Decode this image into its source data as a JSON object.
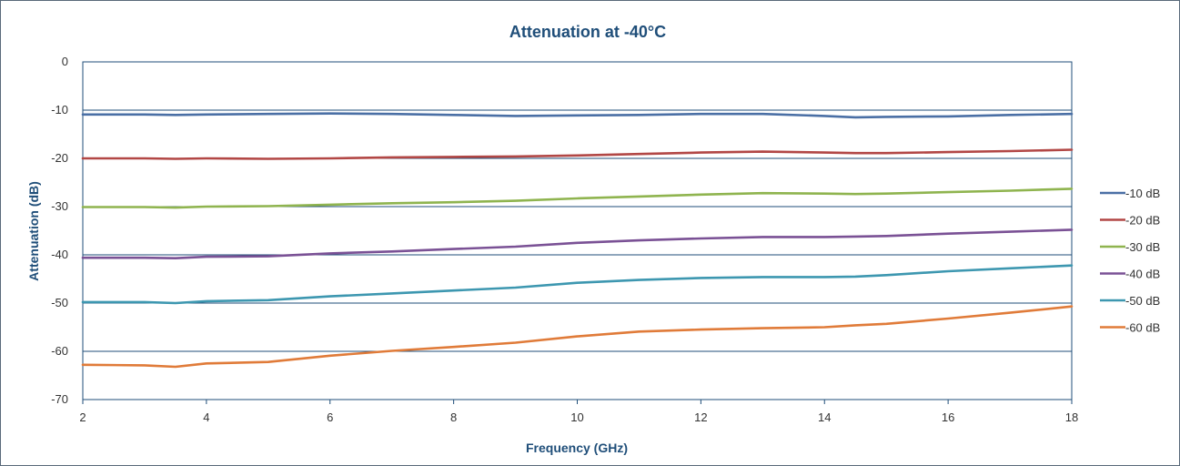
{
  "chart_data": {
    "type": "line",
    "title": "Attenuation at -40°C",
    "xlabel": "Frequency (GHz)",
    "ylabel": "Attenuation (dB)",
    "xlim": [
      2,
      18
    ],
    "ylim": [
      -70,
      0
    ],
    "x_ticks": [
      2,
      4,
      6,
      8,
      10,
      12,
      14,
      16,
      18
    ],
    "y_ticks": [
      0,
      -10,
      -20,
      -30,
      -40,
      -50,
      -60,
      -70
    ],
    "grid": "horizontal",
    "legend_position": "right",
    "x": [
      2,
      3,
      3.5,
      4,
      5,
      6,
      7,
      8,
      9,
      10,
      11,
      12,
      13,
      14,
      14.5,
      15,
      16,
      17,
      18
    ],
    "series": [
      {
        "name": "-10 dB",
        "color": "#4a6fa5",
        "values": [
          -10.9,
          -10.9,
          -11.0,
          -10.9,
          -10.8,
          -10.7,
          -10.8,
          -11.0,
          -11.2,
          -11.1,
          -11.0,
          -10.8,
          -10.8,
          -11.2,
          -11.5,
          -11.4,
          -11.3,
          -11.0,
          -10.8
        ]
      },
      {
        "name": "-20 dB",
        "color": "#b24745",
        "values": [
          -20.0,
          -20.0,
          -20.1,
          -20.0,
          -20.1,
          -20.0,
          -19.8,
          -19.7,
          -19.6,
          -19.4,
          -19.1,
          -18.8,
          -18.6,
          -18.8,
          -18.9,
          -18.9,
          -18.7,
          -18.5,
          -18.2
        ]
      },
      {
        "name": "-30 dB",
        "color": "#8fb44f",
        "values": [
          -30.1,
          -30.1,
          -30.2,
          -30.0,
          -29.9,
          -29.6,
          -29.3,
          -29.1,
          -28.8,
          -28.3,
          -27.9,
          -27.5,
          -27.2,
          -27.3,
          -27.4,
          -27.3,
          -27.0,
          -26.7,
          -26.3
        ]
      },
      {
        "name": "-40 dB",
        "color": "#7a5195",
        "values": [
          -40.6,
          -40.6,
          -40.7,
          -40.4,
          -40.3,
          -39.7,
          -39.3,
          -38.8,
          -38.3,
          -37.5,
          -37.0,
          -36.6,
          -36.3,
          -36.3,
          -36.2,
          -36.1,
          -35.6,
          -35.2,
          -34.8
        ]
      },
      {
        "name": "-50 dB",
        "color": "#3d97b0",
        "values": [
          -49.8,
          -49.8,
          -50.0,
          -49.6,
          -49.4,
          -48.6,
          -48.0,
          -47.4,
          -46.8,
          -45.8,
          -45.2,
          -44.8,
          -44.6,
          -44.6,
          -44.5,
          -44.2,
          -43.4,
          -42.8,
          -42.2
        ]
      },
      {
        "name": "-60 dB",
        "color": "#e07b39",
        "values": [
          -62.8,
          -62.9,
          -63.2,
          -62.5,
          -62.2,
          -60.9,
          -59.9,
          -59.1,
          -58.2,
          -56.9,
          -55.9,
          -55.5,
          -55.2,
          -55.0,
          -54.6,
          -54.3,
          -53.2,
          -52.0,
          -50.7
        ]
      }
    ]
  }
}
